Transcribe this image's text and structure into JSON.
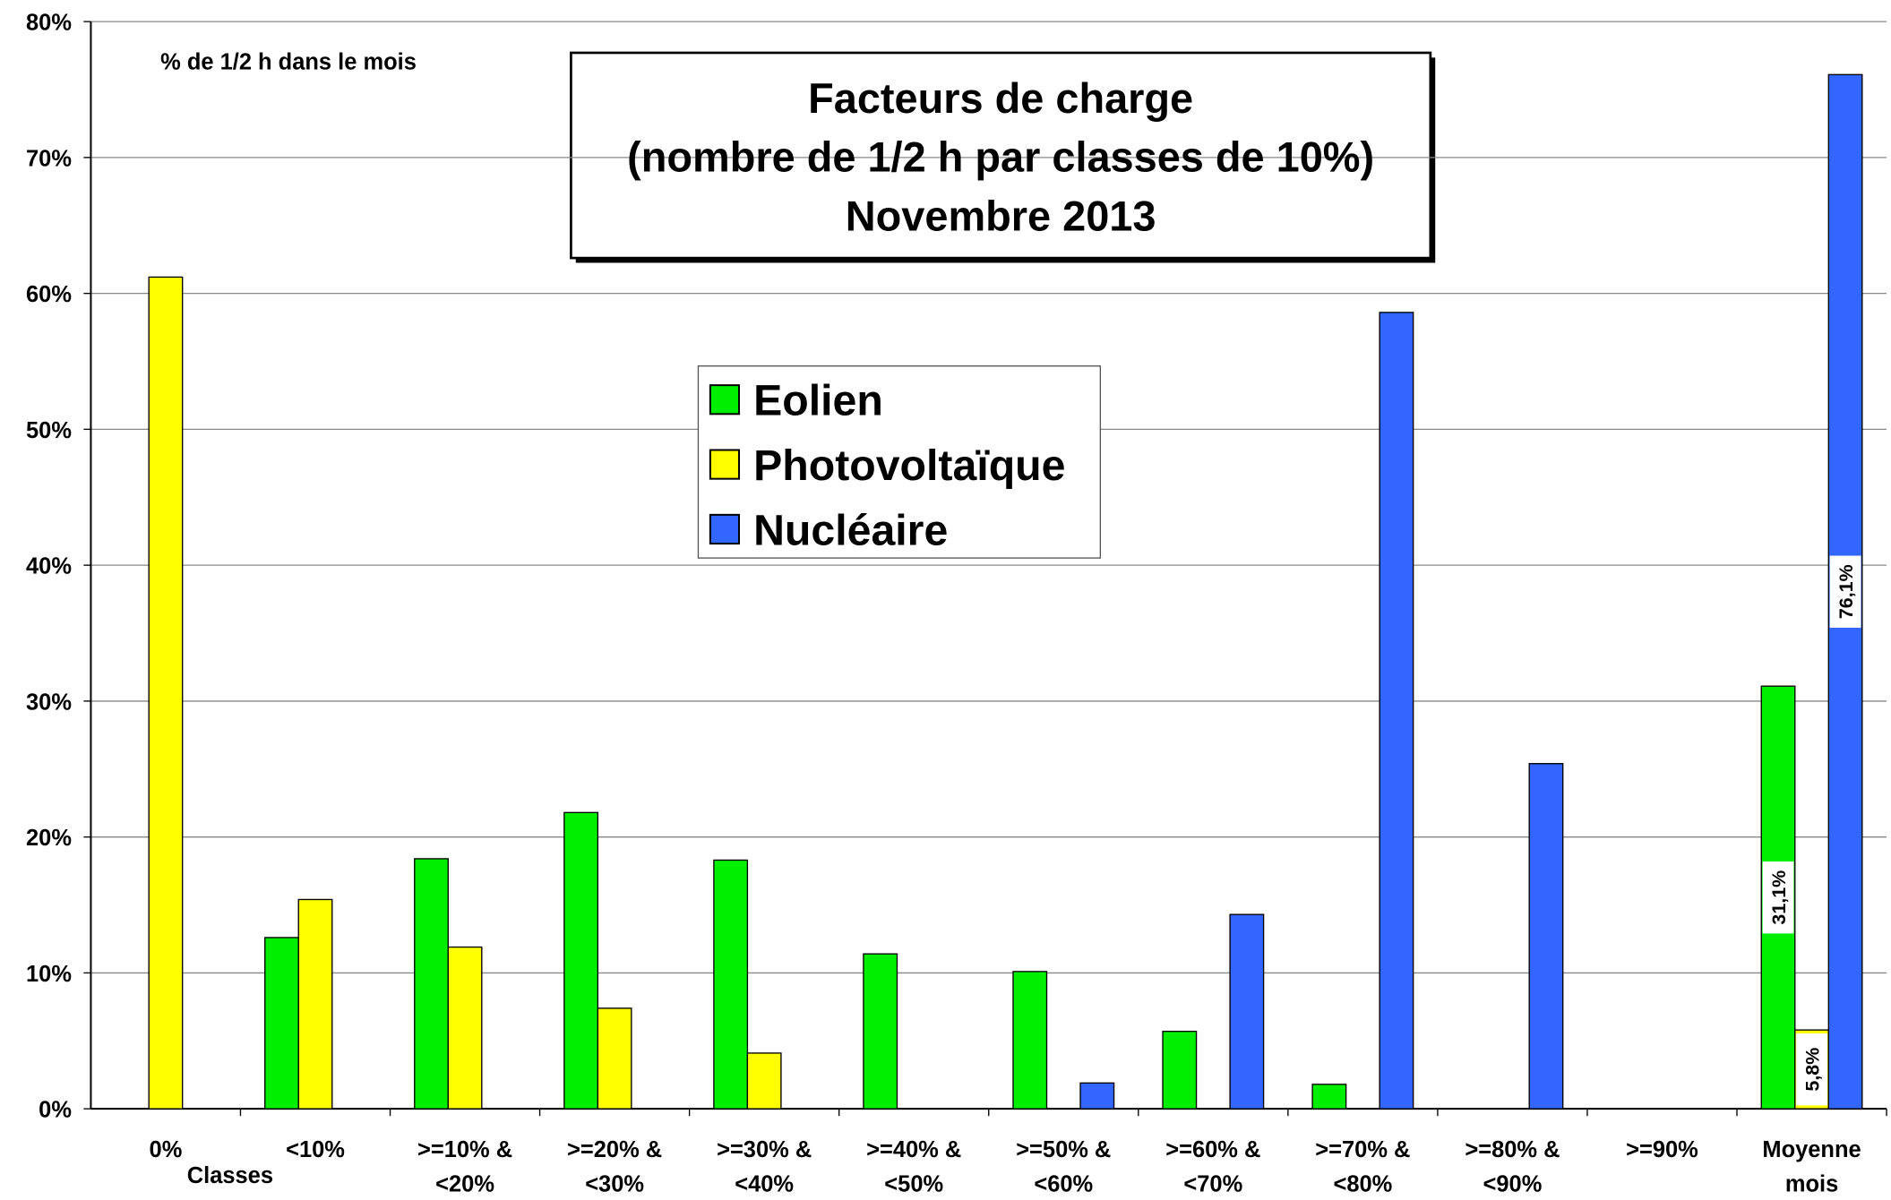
{
  "chart_data": {
    "type": "bar",
    "title": [
      "Facteurs de charge",
      "(nombre de 1/2 h par classes de 10%)",
      "Novembre 2013"
    ],
    "y_label": "% de 1/2 h dans le mois",
    "x_label": "Classes",
    "categories": [
      [
        "0%"
      ],
      [
        "<10%"
      ],
      [
        ">=10% &",
        "<20%"
      ],
      [
        ">=20% &",
        "<30%"
      ],
      [
        ">=30% &",
        "<40%"
      ],
      [
        ">=40% &",
        "<50%"
      ],
      [
        ">=50% &",
        "<60%"
      ],
      [
        ">=60% &",
        "<70%"
      ],
      [
        ">=70% &",
        "<80%"
      ],
      [
        ">=80% &",
        "<90%"
      ],
      [
        ">=90%"
      ],
      [
        "Moyenne",
        "mois"
      ]
    ],
    "series": [
      {
        "name": "Eolien",
        "color": "#00ee00",
        "values": [
          0,
          12.6,
          18.4,
          21.8,
          18.3,
          11.4,
          10.1,
          5.7,
          1.8,
          0,
          0,
          31.1
        ],
        "value_labels": [
          null,
          null,
          null,
          null,
          null,
          null,
          null,
          null,
          null,
          null,
          null,
          "31,1%"
        ]
      },
      {
        "name": "Photovoltaïque",
        "color": "#ffff00",
        "values": [
          61.2,
          15.4,
          11.9,
          7.4,
          4.1,
          0,
          0,
          0,
          0,
          0,
          0,
          5.8
        ],
        "value_labels": [
          null,
          null,
          null,
          null,
          null,
          null,
          null,
          null,
          null,
          null,
          null,
          "5,8%"
        ]
      },
      {
        "name": "Nucléaire",
        "color": "#3366ff",
        "values": [
          0,
          0,
          0,
          0,
          0,
          0,
          1.9,
          14.3,
          58.6,
          25.4,
          0,
          76.1
        ],
        "value_labels": [
          null,
          null,
          null,
          null,
          null,
          null,
          null,
          null,
          null,
          null,
          null,
          "76,1%"
        ]
      }
    ],
    "ylim": [
      0,
      80
    ],
    "yticks": [
      {
        "value": 0,
        "label": "0%"
      },
      {
        "value": 10,
        "label": "10%"
      },
      {
        "value": 20,
        "label": "20%"
      },
      {
        "value": 30,
        "label": "30%"
      },
      {
        "value": 40,
        "label": "40%"
      },
      {
        "value": 50,
        "label": "50%"
      },
      {
        "value": 60,
        "label": "60%"
      },
      {
        "value": 70,
        "label": "70%"
      },
      {
        "value": 80,
        "label": "80%"
      }
    ],
    "grid": true
  }
}
